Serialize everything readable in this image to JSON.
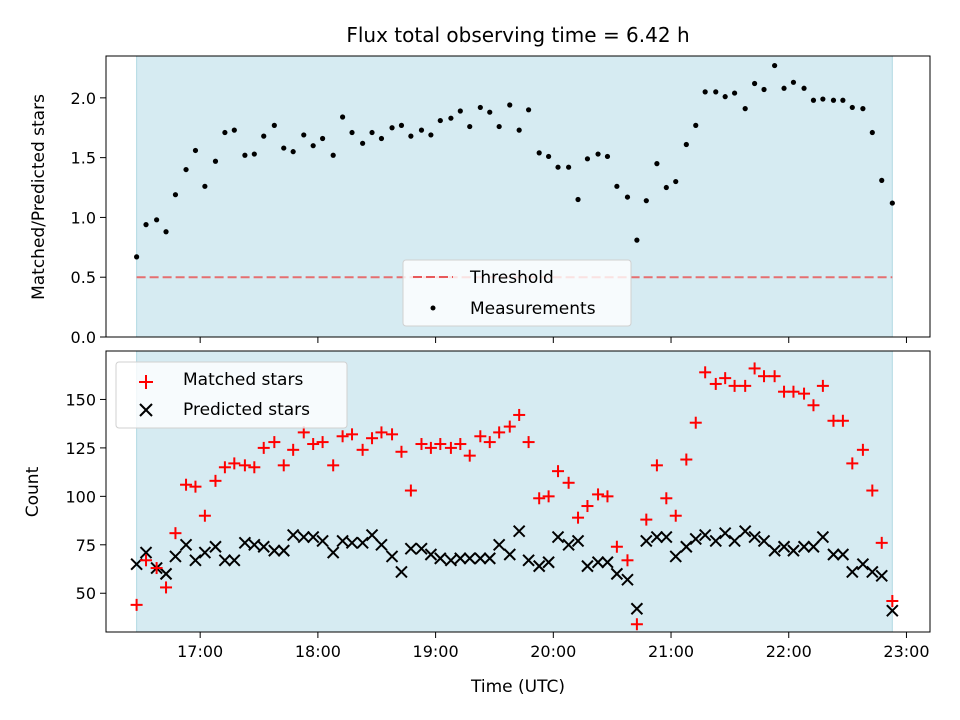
{
  "title": "Flux total observing time = 6.42 h",
  "colors": {
    "shade": "#add8e6",
    "threshold": "#e8595a",
    "matched": "#ff0000",
    "predicted": "#000000",
    "measurement": "#000000"
  },
  "chart_data": [
    {
      "type": "scatter",
      "ylabel": "Matched/Predicted stars",
      "ylim": [
        0,
        2.35
      ],
      "xlim": [
        16.2,
        23.2
      ],
      "yticks": [
        0.0,
        0.5,
        1.0,
        1.5,
        2.0
      ],
      "ytick_labels": [
        "0.0",
        "0.5",
        "1.0",
        "1.5",
        "2.0"
      ],
      "observing_window": [
        16.46,
        22.88
      ],
      "threshold": {
        "label": "Threshold",
        "value": 0.5,
        "style": "dashed"
      },
      "legend": {
        "position": "lower-center",
        "entries": [
          "Threshold",
          "Measurements"
        ]
      },
      "series": [
        {
          "name": "Measurements",
          "x": [
            16.46,
            16.54,
            16.63,
            16.71,
            16.79,
            16.88,
            16.96,
            17.04,
            17.13,
            17.21,
            17.29,
            17.38,
            17.46,
            17.54,
            17.63,
            17.71,
            17.79,
            17.88,
            17.96,
            18.04,
            18.13,
            18.21,
            18.29,
            18.38,
            18.46,
            18.54,
            18.63,
            18.71,
            18.79,
            18.88,
            18.96,
            19.04,
            19.13,
            19.21,
            19.29,
            19.38,
            19.46,
            19.54,
            19.63,
            19.71,
            19.79,
            19.88,
            19.96,
            20.04,
            20.13,
            20.21,
            20.29,
            20.38,
            20.46,
            20.54,
            20.63,
            20.71,
            20.79,
            20.88,
            20.96,
            21.04,
            21.13,
            21.21,
            21.29,
            21.38,
            21.46,
            21.54,
            21.63,
            21.71,
            21.79,
            21.88,
            21.96,
            22.04,
            22.13,
            22.21,
            22.29,
            22.38,
            22.46,
            22.54,
            22.63,
            22.71,
            22.79,
            22.88
          ],
          "y": [
            0.67,
            0.94,
            0.98,
            0.88,
            1.19,
            1.4,
            1.56,
            1.26,
            1.47,
            1.71,
            1.73,
            1.52,
            1.53,
            1.68,
            1.77,
            1.58,
            1.55,
            1.69,
            1.6,
            1.66,
            1.52,
            1.84,
            1.71,
            1.62,
            1.71,
            1.66,
            1.75,
            1.77,
            1.68,
            1.73,
            1.69,
            1.81,
            1.83,
            1.89,
            1.76,
            1.92,
            1.88,
            1.76,
            1.94,
            1.73,
            1.9,
            1.54,
            1.51,
            1.42,
            1.42,
            1.15,
            1.49,
            1.53,
            1.51,
            1.26,
            1.17,
            0.81,
            1.14,
            1.45,
            1.25,
            1.3,
            1.61,
            1.77,
            2.05,
            2.05,
            2.01,
            2.04,
            1.91,
            2.12,
            2.07,
            2.27,
            2.08,
            2.13,
            2.08,
            1.98,
            1.99,
            1.98,
            1.98,
            1.92,
            1.91,
            1.71,
            1.31,
            1.12
          ]
        }
      ]
    },
    {
      "type": "scatter",
      "ylabel": "Count",
      "xlabel": "Time (UTC)",
      "ylim": [
        30,
        175
      ],
      "xlim": [
        16.2,
        23.2
      ],
      "yticks": [
        50,
        75,
        100,
        125,
        150
      ],
      "ytick_labels": [
        "50",
        "75",
        "100",
        "125",
        "150"
      ],
      "xticks": [
        17,
        18,
        19,
        20,
        21,
        22,
        23
      ],
      "xtick_labels": [
        "17:00",
        "18:00",
        "19:00",
        "20:00",
        "21:00",
        "22:00",
        "23:00"
      ],
      "observing_window": [
        16.46,
        22.88
      ],
      "legend": {
        "position": "upper-left",
        "entries": [
          "Matched stars",
          "Predicted stars"
        ]
      },
      "series": [
        {
          "name": "Matched stars",
          "marker": "plus",
          "x": [
            16.46,
            16.54,
            16.63,
            16.71,
            16.79,
            16.88,
            16.96,
            17.04,
            17.13,
            17.21,
            17.29,
            17.38,
            17.46,
            17.54,
            17.63,
            17.71,
            17.79,
            17.88,
            17.96,
            18.04,
            18.13,
            18.21,
            18.29,
            18.38,
            18.46,
            18.54,
            18.63,
            18.71,
            18.79,
            18.88,
            18.96,
            19.04,
            19.13,
            19.21,
            19.29,
            19.38,
            19.46,
            19.54,
            19.63,
            19.71,
            19.79,
            19.88,
            19.96,
            20.04,
            20.13,
            20.21,
            20.29,
            20.38,
            20.46,
            20.54,
            20.63,
            20.71,
            20.79,
            20.88,
            20.96,
            21.04,
            21.13,
            21.21,
            21.29,
            21.38,
            21.46,
            21.54,
            21.63,
            21.71,
            21.79,
            21.88,
            21.96,
            22.04,
            22.13,
            22.21,
            22.29,
            22.38,
            22.46,
            22.54,
            22.63,
            22.71,
            22.79,
            22.88
          ],
          "y": [
            44,
            67,
            63,
            53,
            81,
            106,
            105,
            90,
            108,
            115,
            117,
            116,
            115,
            125,
            128,
            116,
            124,
            133,
            127,
            128,
            116,
            131,
            132,
            124,
            130,
            133,
            132,
            123,
            103,
            127,
            125,
            127,
            125,
            127,
            121,
            131,
            128,
            133,
            136,
            142,
            128,
            99,
            100,
            113,
            107,
            89,
            95,
            101,
            100,
            74,
            67,
            34,
            88,
            116,
            99,
            90,
            119,
            138,
            164,
            158,
            161,
            157,
            157,
            166,
            162,
            162,
            154,
            154,
            153,
            147,
            157,
            139,
            139,
            117,
            124,
            103,
            76,
            46
          ]
        },
        {
          "name": "Predicted stars",
          "marker": "x",
          "x": [
            16.46,
            16.54,
            16.63,
            16.71,
            16.79,
            16.88,
            16.96,
            17.04,
            17.13,
            17.21,
            17.29,
            17.38,
            17.46,
            17.54,
            17.63,
            17.71,
            17.79,
            17.88,
            17.96,
            18.04,
            18.13,
            18.21,
            18.29,
            18.38,
            18.46,
            18.54,
            18.63,
            18.71,
            18.79,
            18.88,
            18.96,
            19.04,
            19.13,
            19.21,
            19.29,
            19.38,
            19.46,
            19.54,
            19.63,
            19.71,
            19.79,
            19.88,
            19.96,
            20.04,
            20.13,
            20.21,
            20.29,
            20.38,
            20.46,
            20.54,
            20.63,
            20.71,
            20.79,
            20.88,
            20.96,
            21.04,
            21.13,
            21.21,
            21.29,
            21.38,
            21.46,
            21.54,
            21.63,
            21.71,
            21.79,
            21.88,
            21.96,
            22.04,
            22.13,
            22.21,
            22.29,
            22.38,
            22.46,
            22.54,
            22.63,
            22.71,
            22.79,
            22.88
          ],
          "y": [
            65,
            71,
            63,
            60,
            69,
            75,
            67,
            71,
            74,
            67,
            67,
            76,
            75,
            74,
            72,
            72,
            80,
            79,
            79,
            77,
            71,
            77,
            76,
            76,
            80,
            75,
            69,
            61,
            73,
            73,
            70,
            68,
            67,
            68,
            68,
            68,
            68,
            75,
            70,
            82,
            67,
            64,
            66,
            79,
            75,
            77,
            64,
            66,
            66,
            60,
            57,
            42,
            77,
            79,
            79,
            69,
            74,
            78,
            80,
            77,
            81,
            77,
            82,
            79,
            77,
            72,
            74,
            72,
            74,
            74,
            79,
            70,
            70,
            61,
            65,
            61,
            59,
            41
          ]
        }
      ]
    }
  ]
}
